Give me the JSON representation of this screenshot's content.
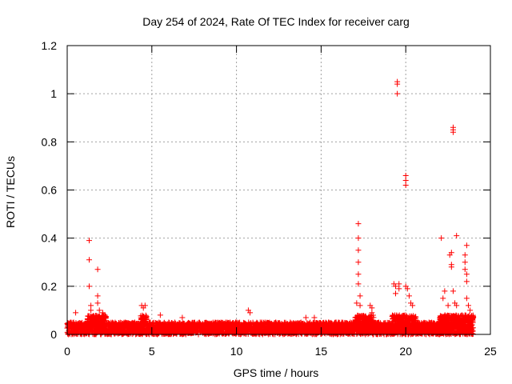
{
  "chart_data": {
    "type": "scatter",
    "title": "Day 254 of 2024, Rate Of TEC Index for receiver carg",
    "xlabel": "GPS time / hours",
    "ylabel": "ROTI / TECUs",
    "xlim": [
      0,
      25
    ],
    "ylim": [
      0,
      1.2
    ],
    "x_ticks": [
      0,
      5,
      10,
      15,
      20,
      25
    ],
    "x_tick_labels": [
      "0",
      "5",
      "10",
      "15",
      "20",
      "25"
    ],
    "y_ticks": [
      0,
      0.2,
      0.4,
      0.6,
      0.8,
      1.0,
      1.2
    ],
    "y_tick_labels": [
      "0",
      "0.2",
      "0.4",
      "0.6",
      "0.8",
      "1",
      "1.2"
    ],
    "grid": true,
    "marker": "+",
    "marker_color": "#ff0000",
    "series": [
      {
        "name": "ROTI",
        "points": [
          [
            0.5,
            0.09
          ],
          [
            1.3,
            0.39
          ],
          [
            1.3,
            0.31
          ],
          [
            1.3,
            0.2
          ],
          [
            1.4,
            0.12
          ],
          [
            1.4,
            0.1
          ],
          [
            1.8,
            0.27
          ],
          [
            1.8,
            0.16
          ],
          [
            1.8,
            0.13
          ],
          [
            1.9,
            0.1
          ],
          [
            2.1,
            0.09
          ],
          [
            2.2,
            0.07
          ],
          [
            4.4,
            0.12
          ],
          [
            4.5,
            0.11
          ],
          [
            4.6,
            0.12
          ],
          [
            5.5,
            0.08
          ],
          [
            6.8,
            0.07
          ],
          [
            10.7,
            0.1
          ],
          [
            10.8,
            0.09
          ],
          [
            14.1,
            0.07
          ],
          [
            14.6,
            0.07
          ],
          [
            17.1,
            0.13
          ],
          [
            17.2,
            0.46
          ],
          [
            17.2,
            0.4
          ],
          [
            17.2,
            0.35
          ],
          [
            17.2,
            0.3
          ],
          [
            17.2,
            0.25
          ],
          [
            17.2,
            0.21
          ],
          [
            17.3,
            0.16
          ],
          [
            17.3,
            0.12
          ],
          [
            17.9,
            0.12
          ],
          [
            18.0,
            0.11
          ],
          [
            18.0,
            0.09
          ],
          [
            19.3,
            0.21
          ],
          [
            19.4,
            0.2
          ],
          [
            19.4,
            0.17
          ],
          [
            19.5,
            1.05
          ],
          [
            19.5,
            1.04
          ],
          [
            19.5,
            1.0
          ],
          [
            19.6,
            0.21
          ],
          [
            19.6,
            0.19
          ],
          [
            20.0,
            0.66
          ],
          [
            20.0,
            0.64
          ],
          [
            20.0,
            0.62
          ],
          [
            20.0,
            0.2
          ],
          [
            20.1,
            0.19
          ],
          [
            20.2,
            0.16
          ],
          [
            20.3,
            0.13
          ],
          [
            20.4,
            0.12
          ],
          [
            22.1,
            0.4
          ],
          [
            22.2,
            0.15
          ],
          [
            22.3,
            0.18
          ],
          [
            22.5,
            0.12
          ],
          [
            22.6,
            0.33
          ],
          [
            22.7,
            0.34
          ],
          [
            22.7,
            0.29
          ],
          [
            22.7,
            0.28
          ],
          [
            22.8,
            0.86
          ],
          [
            22.8,
            0.85
          ],
          [
            22.8,
            0.84
          ],
          [
            22.8,
            0.18
          ],
          [
            22.9,
            0.13
          ],
          [
            23.0,
            0.41
          ],
          [
            23.0,
            0.12
          ],
          [
            23.5,
            0.33
          ],
          [
            23.5,
            0.3
          ],
          [
            23.5,
            0.27
          ],
          [
            23.6,
            0.37
          ],
          [
            23.6,
            0.25
          ],
          [
            23.6,
            0.22
          ],
          [
            23.6,
            0.15
          ],
          [
            23.7,
            0.12
          ],
          [
            23.8,
            0.1
          ]
        ],
        "baseline_band": {
          "description": "dense band of low ROTI values across the whole day",
          "x_range": [
            0,
            24
          ],
          "typical_max_y": 0.05,
          "enhanced_intervals": [
            [
              1.2,
              2.3
            ],
            [
              4.3,
              4.7
            ],
            [
              17.0,
              18.1
            ],
            [
              19.2,
              20.6
            ],
            [
              22.0,
              24.0
            ]
          ]
        }
      }
    ]
  }
}
